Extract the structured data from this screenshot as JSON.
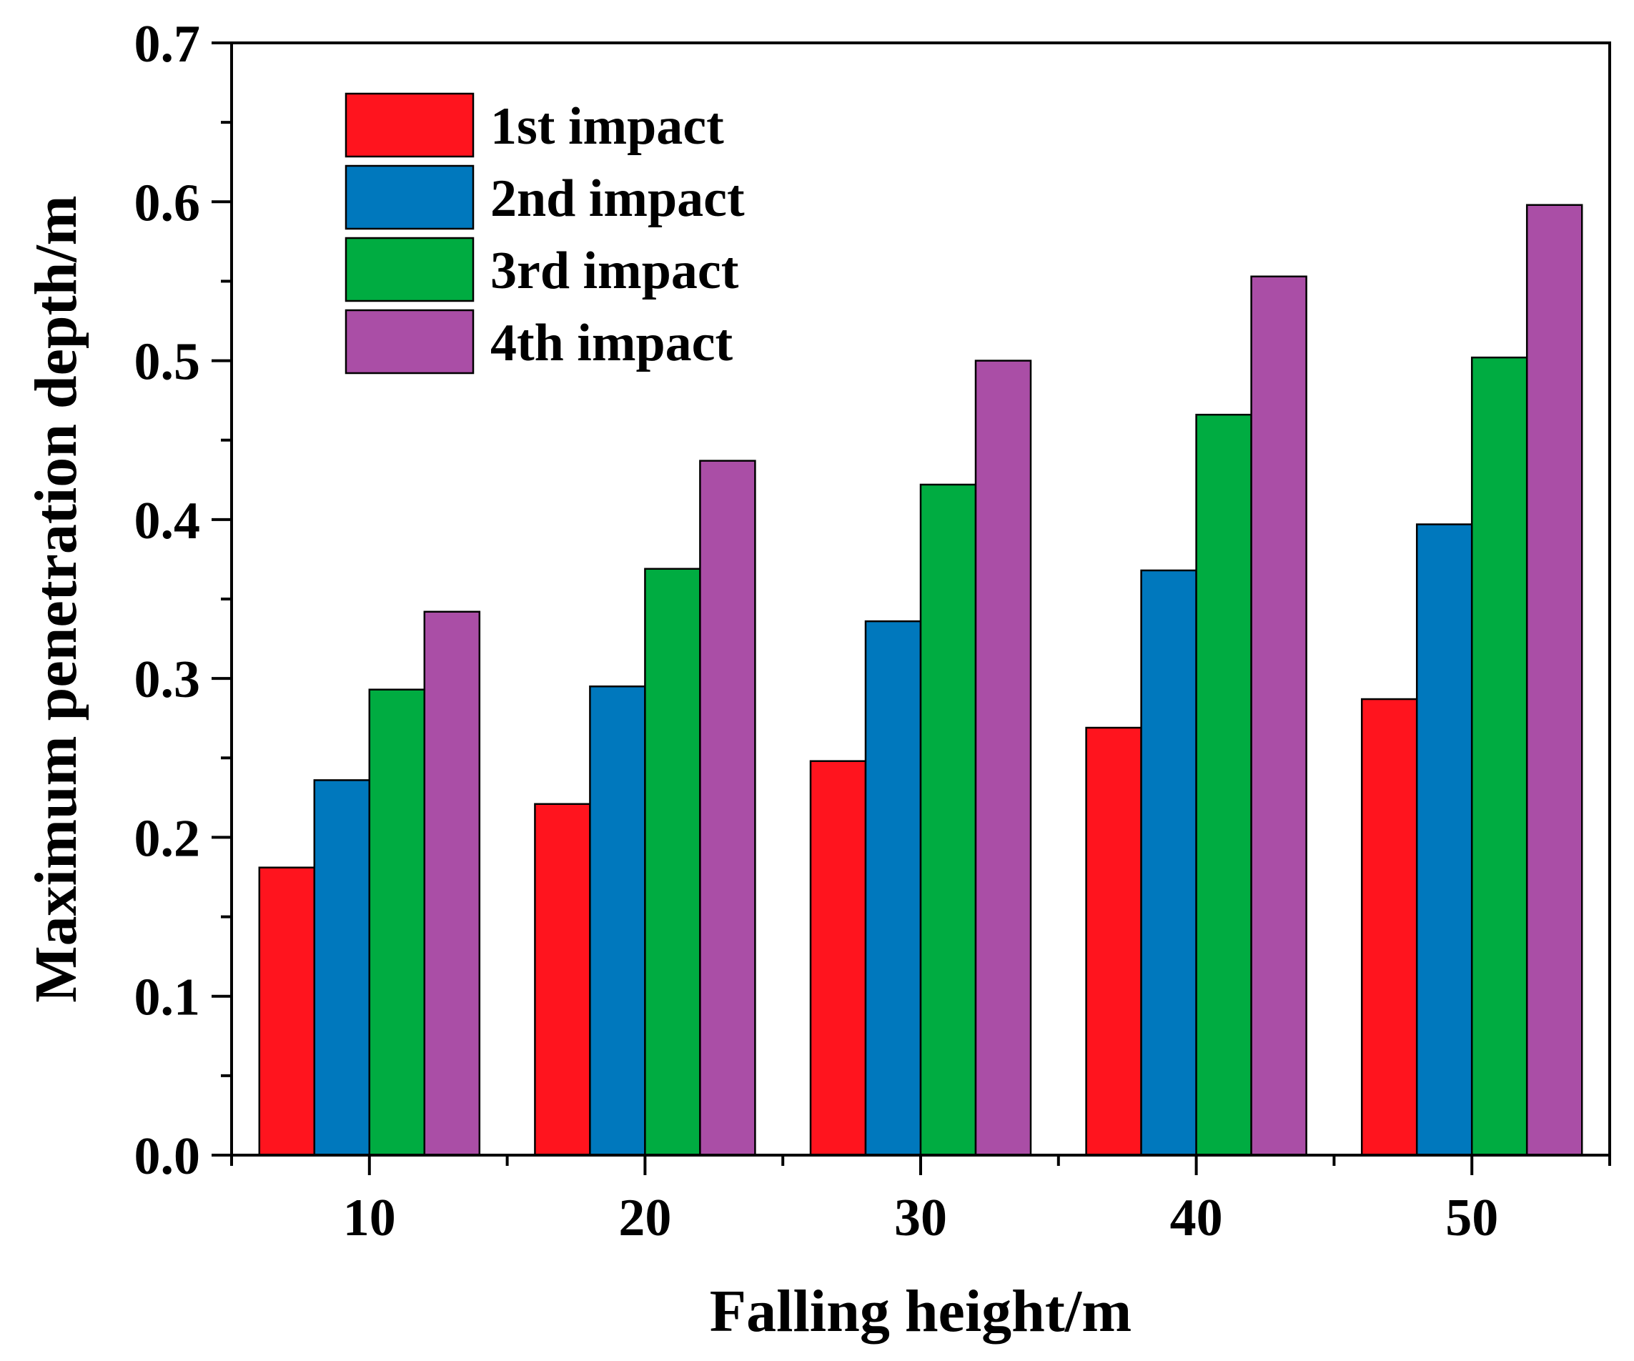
{
  "chart_data": {
    "type": "bar",
    "title": "",
    "xlabel": "Falling height/m",
    "ylabel": "Maximum penetration depth/m",
    "categories": [
      "10",
      "20",
      "30",
      "40",
      "50"
    ],
    "ylim": [
      0,
      0.7
    ],
    "yticks": [
      0.0,
      0.1,
      0.2,
      0.3,
      0.4,
      0.5,
      0.6,
      0.7
    ],
    "ytick_labels": [
      "0.0",
      "0.1",
      "0.2",
      "0.3",
      "0.4",
      "0.5",
      "0.6",
      "0.7"
    ],
    "grid": false,
    "legend_position": "top-left",
    "series": [
      {
        "name": "1st impact",
        "color": "#ff141e",
        "values": [
          0.181,
          0.221,
          0.248,
          0.269,
          0.287
        ]
      },
      {
        "name": "2nd impact",
        "color": "#0078bd",
        "values": [
          0.236,
          0.295,
          0.336,
          0.368,
          0.397
        ]
      },
      {
        "name": "3rd impact",
        "color": "#00ac41",
        "values": [
          0.293,
          0.369,
          0.422,
          0.466,
          0.502
        ]
      },
      {
        "name": "4th impact",
        "color": "#aa4ea6",
        "values": [
          0.342,
          0.437,
          0.5,
          0.553,
          0.598
        ]
      }
    ]
  }
}
